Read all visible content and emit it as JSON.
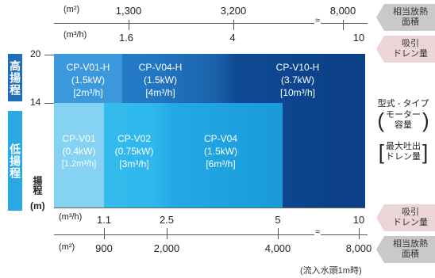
{
  "top_axis": {
    "area_unit": "(m²)",
    "area_ticks": [
      "1,300",
      "3,200",
      "8,000"
    ],
    "flow_unit": "(m³/h)",
    "flow_ticks": [
      "1.6",
      "4",
      "10"
    ]
  },
  "bottom_axis": {
    "flow_unit": "(m³/h)",
    "flow_ticks": [
      "1.1",
      "2.5",
      "5",
      "10"
    ],
    "area_unit": "(m²)",
    "area_ticks": [
      "900",
      "2,000",
      "4,000",
      "8,000"
    ]
  },
  "right_tags": {
    "area_top": [
      "相当放熱",
      "面積"
    ],
    "flow_top": [
      "吸引",
      "ドレン量"
    ],
    "flow_bottom": [
      "吸引",
      "ドレン量"
    ],
    "area_bottom": [
      "相当放熱",
      "面積"
    ]
  },
  "side_labels": {
    "high": "高揚程",
    "low": "低揚程"
  },
  "y_axis": {
    "label": "揚程",
    "unit": "(m)",
    "ticks": [
      "20",
      "14"
    ]
  },
  "models": [
    {
      "name": "CP-V01-H",
      "power": "(1.5kW)",
      "flow": "[2m³/h]",
      "color": "#3b98dd"
    },
    {
      "name": "CP-V04-H",
      "power": "(1.5kW)",
      "flow": "[4m³/h]",
      "color": "#2276c2"
    },
    {
      "name": "CP-V10-H",
      "power": "(3.7kW)",
      "flow": "[10m³/h]",
      "color": "#0b3f86"
    },
    {
      "name": "CP-V01",
      "power": "(0.4kW)",
      "flow": "[1.2m³/h]",
      "color": "#85d2f3"
    },
    {
      "name": "CP-V02",
      "power": "(0.75kW)",
      "flow": "[3m³/h]",
      "color": "#2db7ec"
    },
    {
      "name": "CP-V04",
      "power": "(1.5kW)",
      "flow": "[6m³/h]",
      "color": "#22a6e4"
    }
  ],
  "legend": {
    "type_label": "型式 - タイプ",
    "motor_label": "モーター",
    "capacity_label": "容量",
    "max_discharge": "最大吐出",
    "drain_amount": "ドレン量"
  },
  "footnote": "(流入水頭1m時)"
}
